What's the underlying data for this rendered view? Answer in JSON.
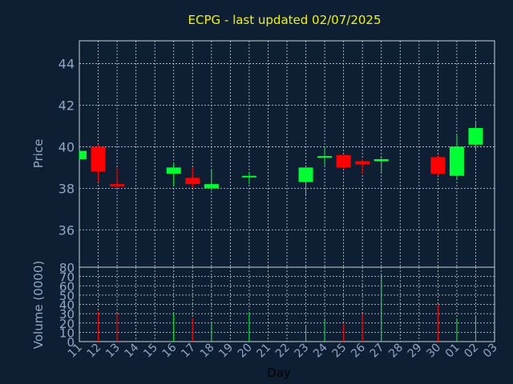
{
  "title": "ECPG - last updated 02/07/2025",
  "colors": {
    "background": "#0f1f33",
    "up": "#00ff33",
    "down": "#ff0000",
    "title": "#f2f20d",
    "axis_text": "#8fa7c6",
    "grid": "#c9d1da"
  },
  "chart_data": [
    {
      "type": "candlestick",
      "ylabel": "Price",
      "ylim": [
        34.2,
        45.1
      ],
      "yticks": [
        36,
        38,
        40,
        42,
        44
      ],
      "grid": true,
      "candles": [
        {
          "x": "11",
          "open": 39.4,
          "high": 39.8,
          "low": 39.4,
          "close": 39.8
        },
        {
          "x": "12",
          "open": 40.0,
          "high": 40.1,
          "low": 38.3,
          "close": 38.8
        },
        {
          "x": "13",
          "open": 38.2,
          "high": 39.0,
          "low": 38.0,
          "close": 38.1
        },
        {
          "x": "16",
          "open": 38.7,
          "high": 39.2,
          "low": 38.1,
          "close": 39.0
        },
        {
          "x": "17",
          "open": 38.5,
          "high": 39.0,
          "low": 38.0,
          "close": 38.2
        },
        {
          "x": "18",
          "open": 38.0,
          "high": 38.9,
          "low": 37.9,
          "close": 38.2
        },
        {
          "x": "20",
          "open": 38.55,
          "high": 38.8,
          "low": 38.2,
          "close": 38.6
        },
        {
          "x": "23",
          "open": 38.3,
          "high": 39.0,
          "low": 37.7,
          "close": 39.0
        },
        {
          "x": "24",
          "open": 39.5,
          "high": 40.0,
          "low": 39.1,
          "close": 39.55
        },
        {
          "x": "25",
          "open": 39.6,
          "high": 39.6,
          "low": 38.9,
          "close": 39.0
        },
        {
          "x": "26",
          "open": 39.3,
          "high": 39.4,
          "low": 38.7,
          "close": 39.15
        },
        {
          "x": "27",
          "open": 39.3,
          "high": 39.5,
          "low": 38.7,
          "close": 39.4
        },
        {
          "x": "30",
          "open": 39.5,
          "high": 39.6,
          "low": 38.6,
          "close": 38.7
        },
        {
          "x": "01",
          "open": 38.6,
          "high": 40.6,
          "low": 38.4,
          "close": 40.0
        },
        {
          "x": "02",
          "open": 40.1,
          "high": 41.2,
          "low": 39.8,
          "close": 40.9
        }
      ]
    },
    {
      "type": "bar",
      "ylabel": "Volume (0000)",
      "ylim": [
        0,
        80
      ],
      "yticks": [
        0,
        10,
        20,
        30,
        40,
        50,
        60,
        70,
        80
      ],
      "grid": true,
      "bars": [
        {
          "x": "11",
          "value": 0,
          "dir": "up"
        },
        {
          "x": "12",
          "value": 32,
          "dir": "down"
        },
        {
          "x": "13",
          "value": 30,
          "dir": "down"
        },
        {
          "x": "16",
          "value": 30,
          "dir": "up"
        },
        {
          "x": "17",
          "value": 25,
          "dir": "down"
        },
        {
          "x": "18",
          "value": 21,
          "dir": "up"
        },
        {
          "x": "20",
          "value": 32,
          "dir": "up"
        },
        {
          "x": "23",
          "value": 18,
          "dir": "up"
        },
        {
          "x": "24",
          "value": 24,
          "dir": "up"
        },
        {
          "x": "25",
          "value": 19,
          "dir": "down"
        },
        {
          "x": "26",
          "value": 30,
          "dir": "down"
        },
        {
          "x": "27",
          "value": 72,
          "dir": "up"
        },
        {
          "x": "30",
          "value": 40,
          "dir": "down"
        },
        {
          "x": "01",
          "value": 25,
          "dir": "up"
        },
        {
          "x": "02",
          "value": 28,
          "dir": "up"
        }
      ]
    }
  ],
  "x_axis": {
    "label": "Day",
    "ticks": [
      "11",
      "12",
      "13",
      "14",
      "15",
      "16",
      "17",
      "18",
      "19",
      "20",
      "21",
      "22",
      "23",
      "24",
      "25",
      "26",
      "27",
      "28",
      "29",
      "30",
      "01",
      "02",
      "03"
    ]
  }
}
